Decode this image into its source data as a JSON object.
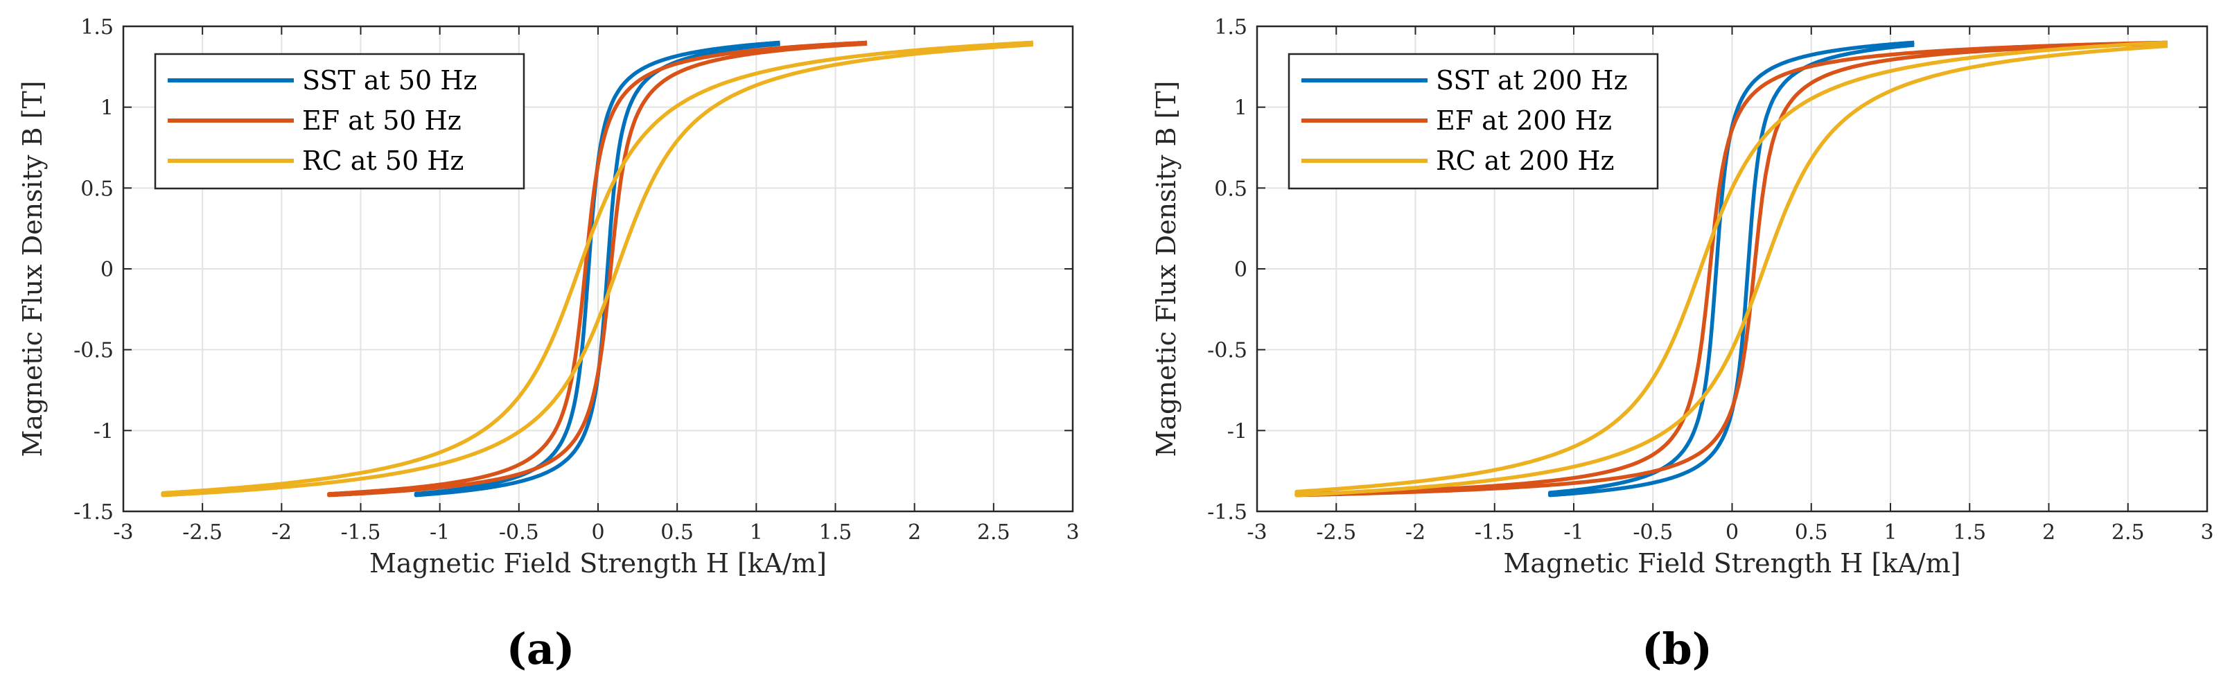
{
  "chart_data": [
    {
      "type": "line",
      "panel_label": "(a)",
      "xlabel": "Magnetic Field Strength H [kA/m]",
      "ylabel": "Magnetic Flux Density B [T]",
      "xlim": [
        -3,
        3
      ],
      "ylim": [
        -1.5,
        1.5
      ],
      "grid": true,
      "legend": "top-left",
      "xticks": [
        -3,
        -2.5,
        -2,
        -1.5,
        -1,
        -0.5,
        0,
        0.5,
        1,
        1.5,
        2,
        2.5,
        3
      ],
      "yticks": [
        -1.5,
        -1,
        -0.5,
        0,
        0.5,
        1,
        1.5
      ],
      "series": [
        {
          "name": "SST at 50 Hz",
          "color": "#0072BD",
          "hmax": 1.15,
          "hc": 0.06,
          "bmax": 1.4,
          "knee": 0.08
        },
        {
          "name": "EF at 50 Hz",
          "color": "#D95319",
          "hmax": 1.7,
          "hc": 0.08,
          "bmax": 1.4,
          "knee": 0.11
        },
        {
          "name": "RC at 50 Hz",
          "color": "#EDB120",
          "hmax": 2.75,
          "hc": 0.12,
          "bmax": 1.4,
          "knee": 0.42
        }
      ]
    },
    {
      "type": "line",
      "panel_label": "(b)",
      "xlabel": "Magnetic Field Strength H [kA/m]",
      "ylabel": "Magnetic Flux Density B [T]",
      "xlim": [
        -3,
        3
      ],
      "ylim": [
        -1.5,
        1.5
      ],
      "grid": true,
      "legend": "top-left",
      "xticks": [
        -3,
        -2.5,
        -2,
        -1.5,
        -1,
        -0.5,
        0,
        0.5,
        1,
        1.5,
        2,
        2.5,
        3
      ],
      "yticks": [
        -1.5,
        -1,
        -0.5,
        0,
        0.5,
        1,
        1.5
      ],
      "series": [
        {
          "name": "SST at 200 Hz",
          "color": "#0072BD",
          "hmax": 1.15,
          "hc": 0.1,
          "bmax": 1.4,
          "knee": 0.08
        },
        {
          "name": "EF at 200 Hz",
          "color": "#D95319",
          "hmax": 2.75,
          "hc": 0.14,
          "bmax": 1.4,
          "knee": 0.11
        },
        {
          "name": "RC at 200 Hz",
          "color": "#EDB120",
          "hmax": 2.75,
          "hc": 0.2,
          "bmax": 1.4,
          "knee": 0.42
        }
      ]
    }
  ]
}
